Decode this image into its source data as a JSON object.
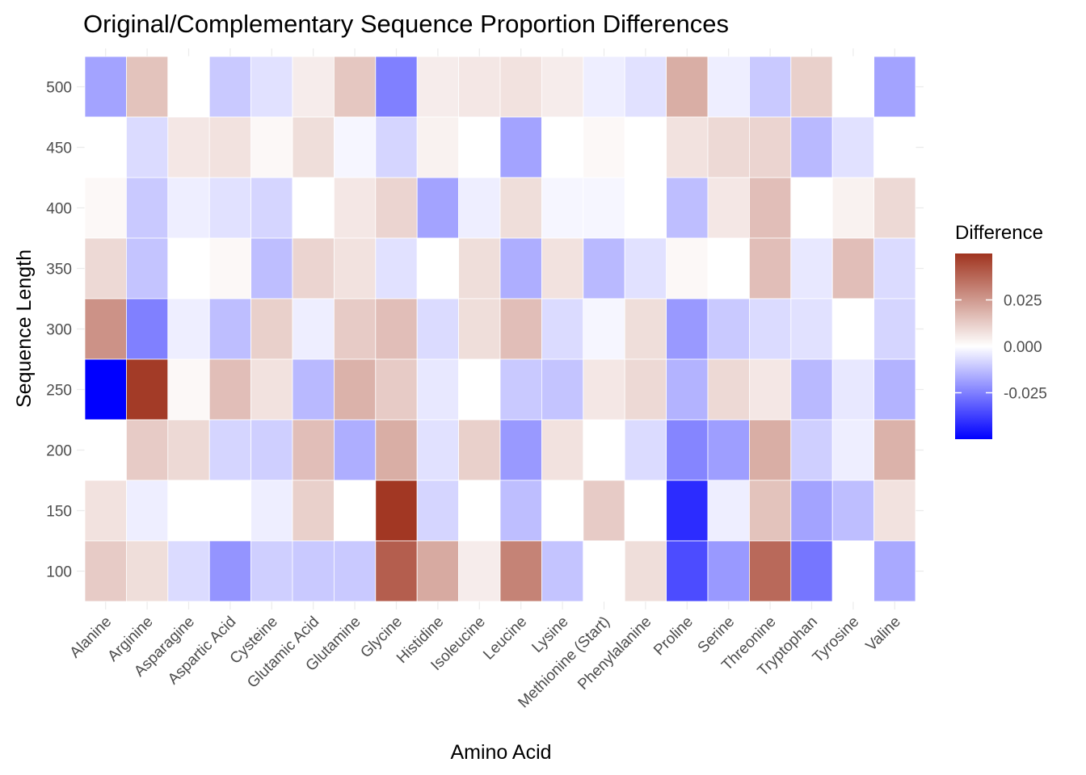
{
  "chart_data": {
    "type": "heatmap",
    "title": "Original/Complementary Sequence Proportion Differences",
    "xlabel": "Amino Acid",
    "ylabel": "Sequence Length",
    "x": [
      "Alanine",
      "Arginine",
      "Asparagine",
      "Aspartic Acid",
      "Cysteine",
      "Glutamic Acid",
      "Glutamine",
      "Glycine",
      "Histidine",
      "Isoleucine",
      "Leucine",
      "Lysine",
      "Methionine (Start)",
      "Phenylalanine",
      "Proline",
      "Serine",
      "Threonine",
      "Tryptophan",
      "Tyrosine",
      "Valine"
    ],
    "y": [
      500,
      450,
      400,
      350,
      300,
      250,
      200,
      150,
      100
    ],
    "y_tick_labels": [
      "100",
      "150",
      "200",
      "250",
      "300",
      "350",
      "400",
      "450",
      "500"
    ],
    "values": [
      [
        -0.015,
        0.012,
        0.0,
        -0.008,
        -0.004,
        0.003,
        0.011,
        -0.022,
        0.003,
        0.004,
        0.005,
        0.003,
        -0.002,
        -0.004,
        0.017,
        -0.002,
        -0.008,
        0.009,
        0.0,
        -0.015
      ],
      [
        0.0,
        -0.005,
        0.004,
        0.005,
        0.001,
        0.006,
        -0.001,
        -0.006,
        0.002,
        0.0,
        -0.015,
        0.0,
        0.001,
        0.0,
        0.005,
        0.007,
        0.008,
        -0.011,
        -0.004,
        0.0
      ],
      [
        0.001,
        -0.008,
        -0.002,
        -0.004,
        -0.006,
        0.0,
        0.004,
        0.008,
        -0.015,
        -0.002,
        0.006,
        -0.001,
        -0.001,
        0.0,
        -0.01,
        0.004,
        0.013,
        0.0,
        0.002,
        0.007
      ],
      [
        0.007,
        -0.009,
        0.0,
        0.001,
        -0.01,
        0.008,
        0.005,
        -0.004,
        0.0,
        0.006,
        -0.013,
        0.005,
        -0.011,
        -0.004,
        0.001,
        0.0,
        0.013,
        -0.003,
        0.013,
        -0.005
      ],
      [
        0.024,
        -0.022,
        -0.002,
        -0.01,
        0.009,
        -0.002,
        0.01,
        0.013,
        -0.005,
        0.006,
        0.013,
        -0.005,
        -0.001,
        0.006,
        -0.017,
        -0.008,
        -0.005,
        -0.004,
        0.0,
        -0.006
      ],
      [
        -0.05,
        0.048,
        0.001,
        0.013,
        0.005,
        -0.011,
        0.016,
        0.01,
        -0.003,
        0.0,
        -0.008,
        -0.009,
        0.004,
        0.007,
        -0.012,
        0.007,
        0.004,
        -0.011,
        -0.003,
        -0.012
      ],
      [
        0.0,
        0.01,
        0.007,
        -0.006,
        -0.007,
        0.013,
        -0.013,
        0.017,
        -0.004,
        0.009,
        -0.017,
        0.005,
        0.0,
        -0.005,
        -0.021,
        -0.016,
        0.017,
        -0.007,
        -0.002,
        0.016
      ],
      [
        0.005,
        -0.002,
        0.0,
        0.0,
        -0.002,
        0.009,
        0.0,
        0.049,
        -0.006,
        0.0,
        -0.01,
        0.0,
        0.01,
        0.0,
        -0.04,
        -0.002,
        0.012,
        -0.015,
        -0.01,
        0.005
      ],
      [
        0.01,
        0.006,
        -0.005,
        -0.018,
        -0.007,
        -0.008,
        -0.008,
        0.038,
        0.018,
        0.003,
        0.028,
        -0.009,
        0.0,
        0.006,
        -0.033,
        -0.017,
        0.035,
        -0.024,
        0.0,
        -0.014
      ]
    ],
    "color_scale": {
      "low": "#0000ff",
      "mid": "#ffffff",
      "high": "#a0341f",
      "limits": [
        -0.05,
        0.05
      ],
      "legend_title": "Difference",
      "legend_ticks": [
        "0.025",
        "0.000",
        "-0.025"
      ],
      "legend_tick_values": [
        0.025,
        0.0,
        -0.025
      ],
      "legend_position": "right"
    },
    "grid": true
  }
}
